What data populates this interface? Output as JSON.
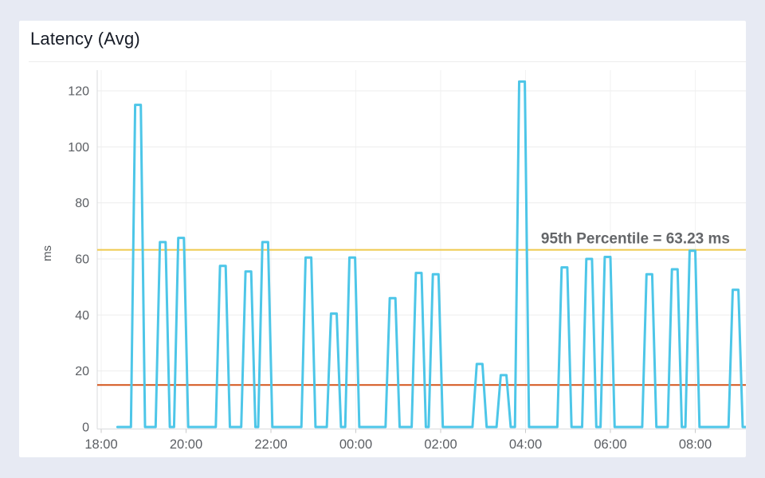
{
  "page": {
    "background_color": "#e7eaf3",
    "card_background_color": "#ffffff"
  },
  "header": {
    "title": "Latency (Avg)"
  },
  "chart_data": {
    "type": "line",
    "title": "Latency (Avg)",
    "xlabel": "",
    "ylabel": "ms",
    "x_tick_labels": [
      "18:00",
      "20:00",
      "22:00",
      "00:00",
      "02:00",
      "04:00",
      "06:00",
      "08:00"
    ],
    "x_tick_interval_hours": 2,
    "y_ticks": [
      0,
      20,
      40,
      60,
      80,
      100,
      120
    ],
    "ylim": [
      0,
      130
    ],
    "grid": true,
    "legend": false,
    "baseline_value": 0,
    "series_start_time": "18:23",
    "series_end_time": "09:09",
    "series": [
      {
        "name": "Latency (Avg)",
        "color": "#4dc6e8",
        "spike_base_halfwidth_min": 10,
        "spike_top_halfwidth_min": 4,
        "spikes": [
          [
            "18:52",
            115
          ],
          [
            "19:27",
            66
          ],
          [
            "19:53",
            67.5
          ],
          [
            "20:52",
            57.5
          ],
          [
            "21:28",
            55.5
          ],
          [
            "21:52",
            66
          ],
          [
            "22:53",
            60.5
          ],
          [
            "23:29",
            40.5
          ],
          [
            "23:55",
            60.5
          ],
          [
            "00:52",
            46
          ],
          [
            "01:29",
            55
          ],
          [
            "01:53",
            54.5
          ],
          [
            "02:55",
            22.5
          ],
          [
            "03:29",
            18.5
          ],
          [
            "03:55",
            123.3
          ],
          [
            "04:55",
            57
          ],
          [
            "05:30",
            60
          ],
          [
            "05:56",
            60.7
          ],
          [
            "06:55",
            54.5
          ],
          [
            "07:31",
            56.3
          ],
          [
            "07:56",
            62.9
          ],
          [
            "08:57",
            49
          ]
        ]
      }
    ],
    "annotations": {
      "percentile_line": {
        "value": 63.23,
        "label": "95th Percentile = 63.23 ms",
        "line_color": "#efc94c",
        "label_color": "#646669"
      },
      "threshold_line": {
        "value": 15,
        "line_color": "#d4551b"
      }
    },
    "axis_text_color": "#5b5e63",
    "grid_color": "#ededed",
    "axis_line_color": "#d9dbde"
  }
}
